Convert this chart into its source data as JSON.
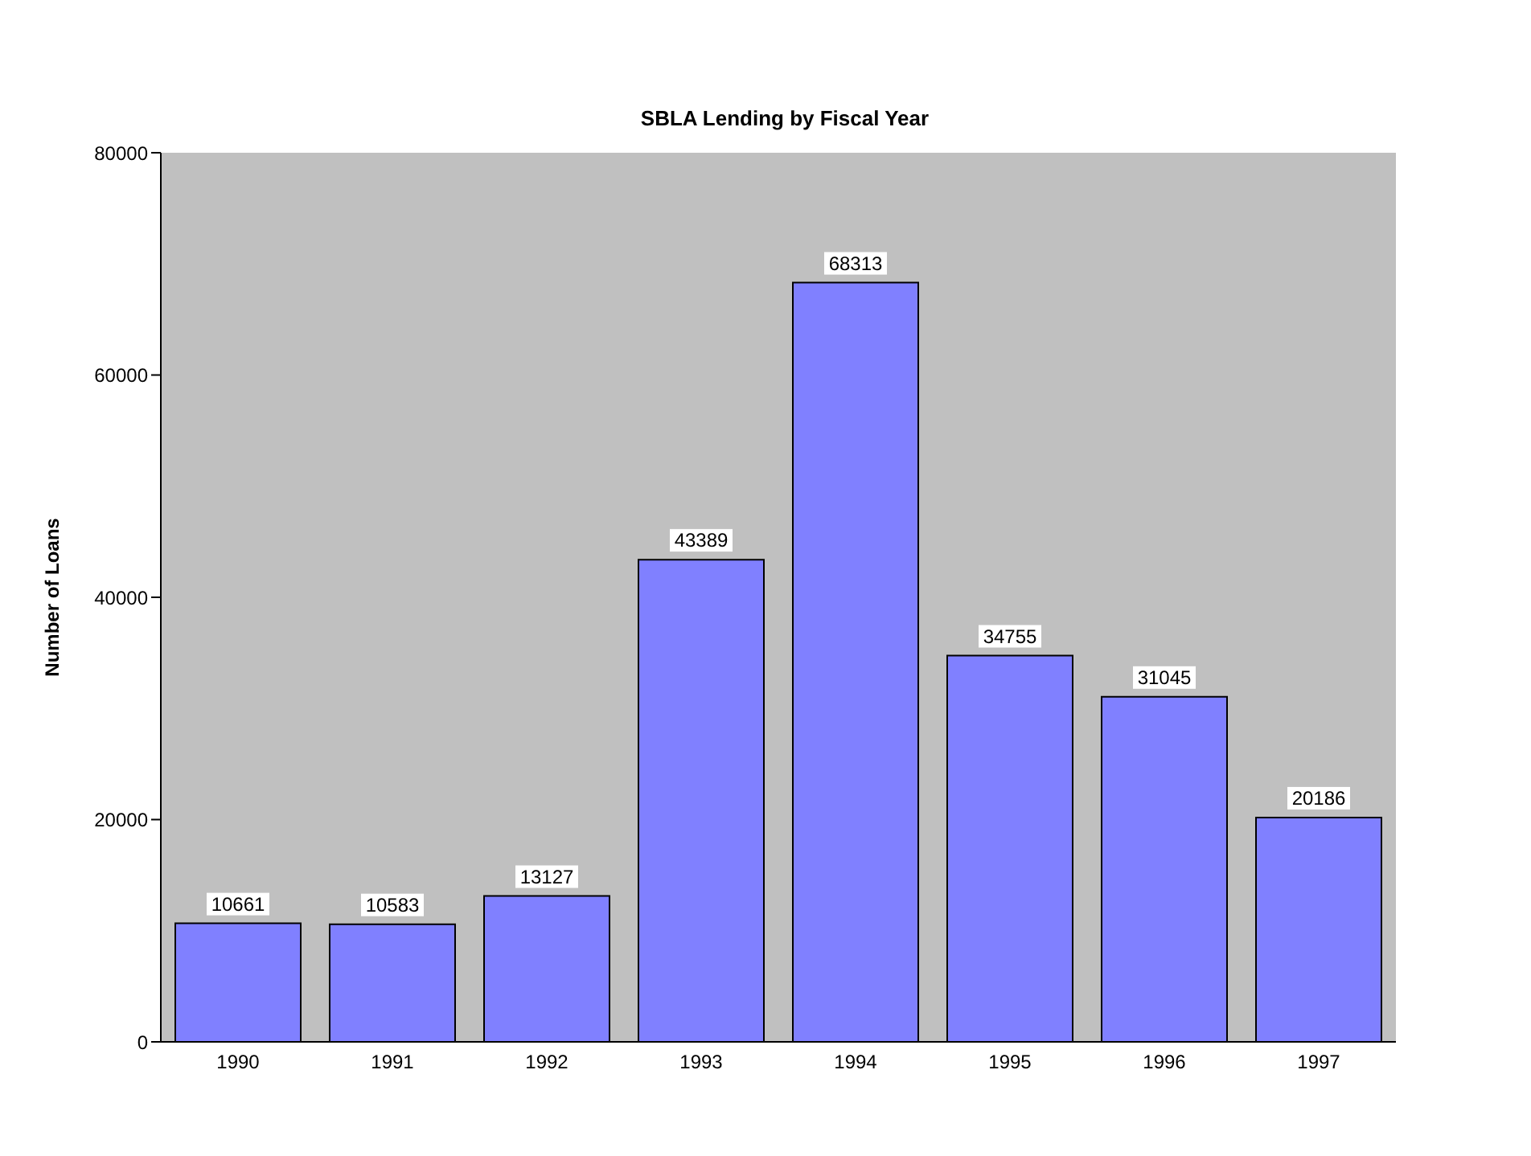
{
  "chart_data": {
    "type": "bar",
    "title": "SBLA Lending by Fiscal Year",
    "ylabel": "Number of Loans",
    "categories": [
      "1990",
      "1991",
      "1992",
      "1993",
      "1994",
      "1995",
      "1996",
      "1997"
    ],
    "values": [
      10661,
      10583,
      13127,
      43389,
      68313,
      34755,
      31045,
      20186
    ],
    "color": "#8080ff",
    "ylim": [
      0,
      80000
    ],
    "yticks": [
      0,
      20000,
      40000,
      60000,
      80000
    ],
    "data_labels": true
  }
}
